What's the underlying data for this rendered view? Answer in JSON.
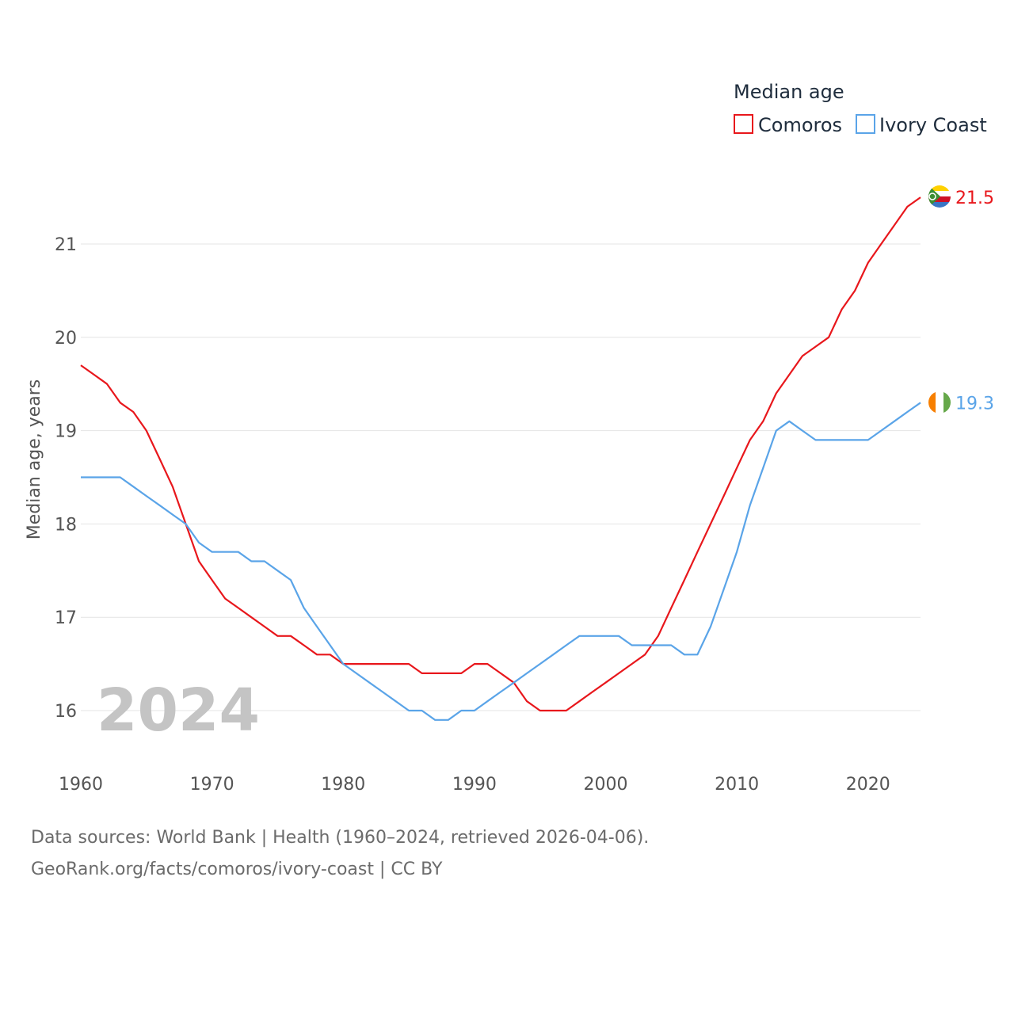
{
  "chart_data": {
    "type": "line",
    "title": "Median age",
    "xlabel": "",
    "ylabel": "Median age, years",
    "xlim": [
      1960,
      2024
    ],
    "ylim": [
      15.5,
      21.9
    ],
    "x_ticks": [
      1960,
      1970,
      1980,
      1990,
      2000,
      2010,
      2020
    ],
    "y_ticks": [
      16,
      17,
      18,
      19,
      20,
      21
    ],
    "grid": true,
    "legend_position": "top-right",
    "highlight_year": "2024",
    "x": [
      1960,
      1961,
      1962,
      1963,
      1964,
      1965,
      1966,
      1967,
      1968,
      1969,
      1970,
      1971,
      1972,
      1973,
      1974,
      1975,
      1976,
      1977,
      1978,
      1979,
      1980,
      1981,
      1982,
      1983,
      1984,
      1985,
      1986,
      1987,
      1988,
      1989,
      1990,
      1991,
      1992,
      1993,
      1994,
      1995,
      1996,
      1997,
      1998,
      1999,
      2000,
      2001,
      2002,
      2003,
      2004,
      2005,
      2006,
      2007,
      2008,
      2009,
      2010,
      2011,
      2012,
      2013,
      2014,
      2015,
      2016,
      2017,
      2018,
      2019,
      2020,
      2021,
      2022,
      2023,
      2024
    ],
    "series": [
      {
        "name": "Comoros",
        "color": "#e8171c",
        "end_label": "21.5",
        "flag_icon": "comoros-flag-icon",
        "values": [
          19.7,
          19.6,
          19.5,
          19.3,
          19.2,
          19.0,
          18.7,
          18.4,
          18.0,
          17.6,
          17.4,
          17.2,
          17.1,
          17.0,
          16.9,
          16.8,
          16.8,
          16.7,
          16.6,
          16.6,
          16.5,
          16.5,
          16.5,
          16.5,
          16.5,
          16.5,
          16.4,
          16.4,
          16.4,
          16.4,
          16.5,
          16.5,
          16.4,
          16.3,
          16.1,
          16.0,
          16.0,
          16.0,
          16.1,
          16.2,
          16.3,
          16.4,
          16.5,
          16.6,
          16.8,
          17.1,
          17.4,
          17.7,
          18.0,
          18.3,
          18.6,
          18.9,
          19.1,
          19.4,
          19.6,
          19.8,
          19.9,
          20.0,
          20.3,
          20.5,
          20.8,
          21.0,
          21.2,
          21.4,
          21.5
        ]
      },
      {
        "name": "Ivory Coast",
        "color": "#5aa4e8",
        "end_label": "19.3",
        "flag_icon": "ivory-coast-flag-icon",
        "values": [
          18.5,
          18.5,
          18.5,
          18.5,
          18.4,
          18.3,
          18.2,
          18.1,
          18.0,
          17.8,
          17.7,
          17.7,
          17.7,
          17.6,
          17.6,
          17.5,
          17.4,
          17.1,
          16.9,
          16.7,
          16.5,
          16.4,
          16.3,
          16.2,
          16.1,
          16.0,
          16.0,
          15.9,
          15.9,
          16.0,
          16.0,
          16.1,
          16.2,
          16.3,
          16.4,
          16.5,
          16.6,
          16.7,
          16.8,
          16.8,
          16.8,
          16.8,
          16.7,
          16.7,
          16.7,
          16.7,
          16.6,
          16.6,
          16.9,
          17.3,
          17.7,
          18.2,
          18.6,
          19.0,
          19.1,
          19.0,
          18.9,
          18.9,
          18.9,
          18.9,
          18.9,
          19.0,
          19.1,
          19.2,
          19.3
        ]
      }
    ]
  },
  "footer": {
    "sources": "Data sources: World Bank | Health (1960–2024, retrieved 2026-04-06).",
    "credit": "GeoRank.org/facts/comoros/ivory-coast | CC BY"
  }
}
